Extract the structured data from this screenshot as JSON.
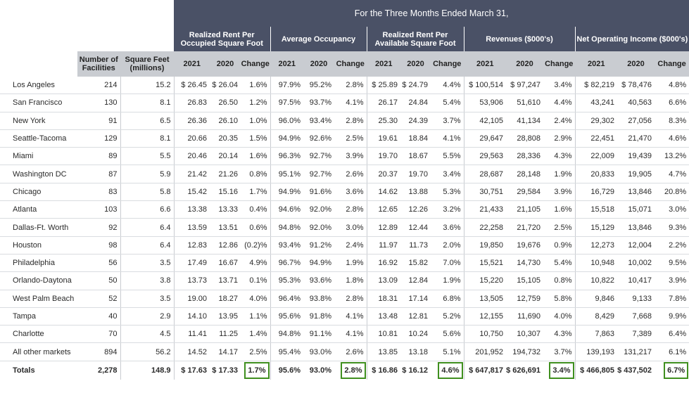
{
  "top_title": "For the Three Months Ended March 31,",
  "groups": [
    {
      "title": "Realized Rent Per Occupied Square Foot"
    },
    {
      "title": "Average Occupancy"
    },
    {
      "title": "Realized Rent Per Available Square Foot"
    },
    {
      "title": "Revenues ($000's)"
    },
    {
      "title": "Net Operating Income ($000's)"
    }
  ],
  "left_headers": {
    "facilities": "Number of Facilities",
    "sqft": "Square Feet (millions)"
  },
  "sub_headers": [
    "2021",
    "2020",
    "Change"
  ],
  "rows": [
    {
      "name": "Los Angeles",
      "fac": "214",
      "sqft": "15.2",
      "v": [
        "$ 26.45",
        "$ 26.04",
        "1.6%",
        "97.9%",
        "95.2%",
        "2.8%",
        "$ 25.89",
        "$ 24.79",
        "4.4%",
        "$ 100,514",
        "$ 97,247",
        "3.4%",
        "$ 82,219",
        "$ 78,476",
        "4.8%"
      ]
    },
    {
      "name": "San Francisco",
      "fac": "130",
      "sqft": "8.1",
      "v": [
        "26.83",
        "26.50",
        "1.2%",
        "97.5%",
        "93.7%",
        "4.1%",
        "26.17",
        "24.84",
        "5.4%",
        "53,906",
        "51,610",
        "4.4%",
        "43,241",
        "40,563",
        "6.6%"
      ]
    },
    {
      "name": "New York",
      "fac": "91",
      "sqft": "6.5",
      "v": [
        "26.36",
        "26.10",
        "1.0%",
        "96.0%",
        "93.4%",
        "2.8%",
        "25.30",
        "24.39",
        "3.7%",
        "42,105",
        "41,134",
        "2.4%",
        "29,302",
        "27,056",
        "8.3%"
      ]
    },
    {
      "name": "Seattle-Tacoma",
      "fac": "129",
      "sqft": "8.1",
      "v": [
        "20.66",
        "20.35",
        "1.5%",
        "94.9%",
        "92.6%",
        "2.5%",
        "19.61",
        "18.84",
        "4.1%",
        "29,647",
        "28,808",
        "2.9%",
        "22,451",
        "21,470",
        "4.6%"
      ]
    },
    {
      "name": "Miami",
      "fac": "89",
      "sqft": "5.5",
      "v": [
        "20.46",
        "20.14",
        "1.6%",
        "96.3%",
        "92.7%",
        "3.9%",
        "19.70",
        "18.67",
        "5.5%",
        "29,563",
        "28,336",
        "4.3%",
        "22,009",
        "19,439",
        "13.2%"
      ]
    },
    {
      "name": "Washington DC",
      "fac": "87",
      "sqft": "5.9",
      "v": [
        "21.42",
        "21.26",
        "0.8%",
        "95.1%",
        "92.7%",
        "2.6%",
        "20.37",
        "19.70",
        "3.4%",
        "28,687",
        "28,148",
        "1.9%",
        "20,833",
        "19,905",
        "4.7%"
      ]
    },
    {
      "name": "Chicago",
      "fac": "83",
      "sqft": "5.8",
      "v": [
        "15.42",
        "15.16",
        "1.7%",
        "94.9%",
        "91.6%",
        "3.6%",
        "14.62",
        "13.88",
        "5.3%",
        "30,751",
        "29,584",
        "3.9%",
        "16,729",
        "13,846",
        "20.8%"
      ]
    },
    {
      "name": "Atlanta",
      "fac": "103",
      "sqft": "6.6",
      "v": [
        "13.38",
        "13.33",
        "0.4%",
        "94.6%",
        "92.0%",
        "2.8%",
        "12.65",
        "12.26",
        "3.2%",
        "21,433",
        "21,105",
        "1.6%",
        "15,518",
        "15,071",
        "3.0%"
      ]
    },
    {
      "name": "Dallas-Ft. Worth",
      "fac": "92",
      "sqft": "6.4",
      "v": [
        "13.59",
        "13.51",
        "0.6%",
        "94.8%",
        "92.0%",
        "3.0%",
        "12.89",
        "12.44",
        "3.6%",
        "22,258",
        "21,720",
        "2.5%",
        "15,129",
        "13,846",
        "9.3%"
      ]
    },
    {
      "name": "Houston",
      "fac": "98",
      "sqft": "6.4",
      "v": [
        "12.83",
        "12.86",
        "(0.2)%",
        "93.4%",
        "91.2%",
        "2.4%",
        "11.97",
        "11.73",
        "2.0%",
        "19,850",
        "19,676",
        "0.9%",
        "12,273",
        "12,004",
        "2.2%"
      ]
    },
    {
      "name": "Philadelphia",
      "fac": "56",
      "sqft": "3.5",
      "v": [
        "17.49",
        "16.67",
        "4.9%",
        "96.7%",
        "94.9%",
        "1.9%",
        "16.92",
        "15.82",
        "7.0%",
        "15,521",
        "14,730",
        "5.4%",
        "10,948",
        "10,002",
        "9.5%"
      ]
    },
    {
      "name": "Orlando-Daytona",
      "fac": "50",
      "sqft": "3.8",
      "v": [
        "13.73",
        "13.71",
        "0.1%",
        "95.3%",
        "93.6%",
        "1.8%",
        "13.09",
        "12.84",
        "1.9%",
        "15,220",
        "15,105",
        "0.8%",
        "10,822",
        "10,417",
        "3.9%"
      ]
    },
    {
      "name": "West Palm Beach",
      "fac": "52",
      "sqft": "3.5",
      "v": [
        "19.00",
        "18.27",
        "4.0%",
        "96.4%",
        "93.8%",
        "2.8%",
        "18.31",
        "17.14",
        "6.8%",
        "13,505",
        "12,759",
        "5.8%",
        "9,846",
        "9,133",
        "7.8%"
      ]
    },
    {
      "name": "Tampa",
      "fac": "40",
      "sqft": "2.9",
      "v": [
        "14.10",
        "13.95",
        "1.1%",
        "95.6%",
        "91.8%",
        "4.1%",
        "13.48",
        "12.81",
        "5.2%",
        "12,155",
        "11,690",
        "4.0%",
        "8,429",
        "7,668",
        "9.9%"
      ]
    },
    {
      "name": "Charlotte",
      "fac": "70",
      "sqft": "4.5",
      "v": [
        "11.41",
        "11.25",
        "1.4%",
        "94.8%",
        "91.1%",
        "4.1%",
        "10.81",
        "10.24",
        "5.6%",
        "10,750",
        "10,307",
        "4.3%",
        "7,863",
        "7,389",
        "6.4%"
      ]
    },
    {
      "name": "All other markets",
      "fac": "894",
      "sqft": "56.2",
      "v": [
        "14.52",
        "14.17",
        "2.5%",
        "95.4%",
        "93.0%",
        "2.6%",
        "13.85",
        "13.18",
        "5.1%",
        "201,952",
        "194,732",
        "3.7%",
        "139,193",
        "131,217",
        "6.1%"
      ]
    }
  ],
  "totals": {
    "name": "Totals",
    "fac": "2,278",
    "sqft": "148.9",
    "v": [
      "$ 17.63",
      "$ 17.33",
      "1.7%",
      "95.6%",
      "93.0%",
      "2.8%",
      "$ 16.86",
      "$ 16.12",
      "4.6%",
      "$ 647,817",
      "$ 626,691",
      "3.4%",
      "$ 466,805",
      "$ 437,502",
      "6.7%"
    ]
  },
  "highlight_color": "#3f8f1f",
  "header_dark_color": "#4a5166",
  "header_light_color": "#c9ccd1"
}
